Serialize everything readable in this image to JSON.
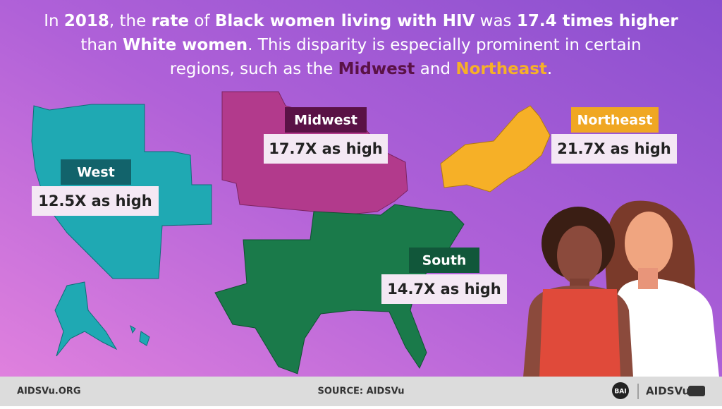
{
  "headline": {
    "segments": [
      "In ",
      "2018",
      ", the ",
      "rate",
      " of ",
      "Black women living with HIV",
      " was ",
      "17.4 times higher",
      "than ",
      "White women",
      ". This disparity is especially prominent in certain",
      "regions, such as the ",
      "Midwest",
      " and ",
      "Northeast",
      "."
    ]
  },
  "regions": [
    {
      "name": "West",
      "disparity": "12.5X as high"
    },
    {
      "name": "Midwest",
      "disparity": "17.7X as high"
    },
    {
      "name": "Northeast",
      "disparity": "21.7X as high"
    },
    {
      "name": "South",
      "disparity": "14.7X as high"
    }
  ],
  "footer": {
    "website": "AIDSVu.ORG",
    "source": "SOURCE: AIDSVu",
    "logo_left": "BAI",
    "logo_right": "AIDSVu"
  }
}
